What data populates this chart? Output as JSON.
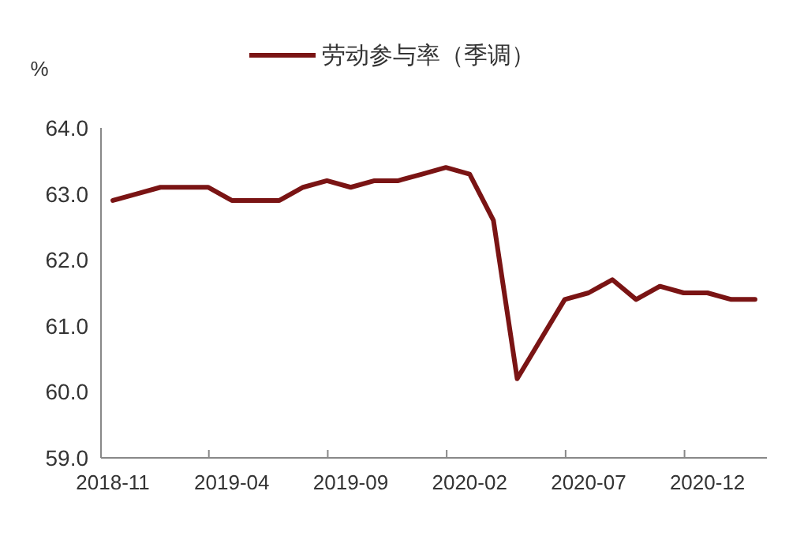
{
  "chart_data": {
    "type": "line",
    "ylabel": "%",
    "legend": "top",
    "categories": [
      "2018-11",
      null,
      null,
      null,
      null,
      "2019-04",
      null,
      null,
      null,
      null,
      "2019-09",
      null,
      null,
      null,
      null,
      "2020-02",
      null,
      null,
      null,
      null,
      "2020-07",
      null,
      null,
      null,
      null,
      "2020-12",
      null,
      null
    ],
    "series": [
      {
        "name": "劳动参与率（季调）",
        "color": "#7a1414",
        "values": [
          62.9,
          63.0,
          63.1,
          63.1,
          63.1,
          62.9,
          62.9,
          62.9,
          63.1,
          63.2,
          63.1,
          63.2,
          63.2,
          63.3,
          63.4,
          63.3,
          62.6,
          60.2,
          60.8,
          61.4,
          61.5,
          61.7,
          61.4,
          61.6,
          61.5,
          61.5,
          61.4,
          61.4
        ]
      }
    ],
    "ylim": [
      59,
      64
    ],
    "yticks": [
      {
        "value": 59,
        "label": "59.0"
      },
      {
        "value": 60,
        "label": "60.0"
      },
      {
        "value": 61,
        "label": "61.0"
      },
      {
        "value": 62,
        "label": "62.0"
      },
      {
        "value": 63,
        "label": "63.0"
      },
      {
        "value": 64,
        "label": "64.0"
      }
    ],
    "grid": false,
    "marker": "none",
    "line_style": "solid"
  }
}
